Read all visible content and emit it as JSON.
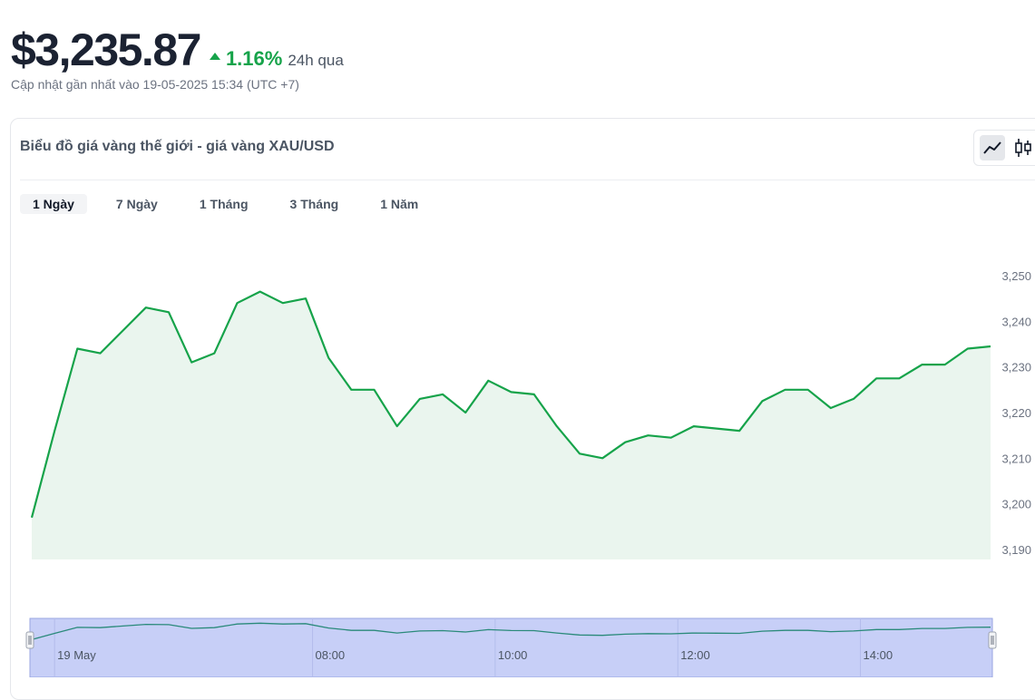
{
  "header": {
    "price": "$3,235.87",
    "change": "1.16%",
    "period": "24h qua",
    "updated": "Cập nhật gần nhất vào 19-05-2025 15:34 (UTC +7)"
  },
  "card": {
    "title": "Biểu đồ giá vàng thế giới - giá vàng XAU/USD",
    "view_modes": [
      "line-chart-icon",
      "candlestick-icon"
    ]
  },
  "ranges": [
    "1 Ngày",
    "7 Ngày",
    "1 Tháng",
    "3 Tháng",
    "1 Năm"
  ],
  "colors": {
    "line": "#16a34a",
    "area": "#eaf5ee",
    "navigator": "#c7cff7",
    "up": "#16a34a"
  },
  "chart_data": {
    "type": "area",
    "series": [
      {
        "values": [
          3197,
          3216,
          3234,
          3233,
          3238,
          3243,
          3242,
          3231,
          3233,
          3244,
          3246.5,
          3244,
          3245,
          3232,
          3225,
          3225,
          3217,
          3223,
          3224,
          3220,
          3227,
          3224.5,
          3224,
          3217,
          3211,
          3210,
          3213.5,
          3215,
          3214.5,
          3217,
          3216.5,
          3216,
          3222.5,
          3225,
          3225,
          3221,
          3223,
          3227.5,
          3227.5,
          3230.5,
          3230.5,
          3234,
          3234.5
        ]
      }
    ],
    "yticks": [
      3190,
      3200,
      3210,
      3220,
      3230,
      3240,
      3250
    ],
    "ytick_labels": [
      "3,190",
      "3,200",
      "3,210",
      "3,220",
      "3,230",
      "3,240",
      "3,250"
    ],
    "ylim": [
      3190,
      3252
    ],
    "navigator": {
      "labels": [
        {
          "label": "19 May",
          "index": 1
        },
        {
          "label": "08:00",
          "index": 12.3
        },
        {
          "label": "10:00",
          "index": 20.3
        },
        {
          "label": "12:00",
          "index": 28.3
        },
        {
          "label": "14:00",
          "index": 36.3
        }
      ]
    }
  }
}
